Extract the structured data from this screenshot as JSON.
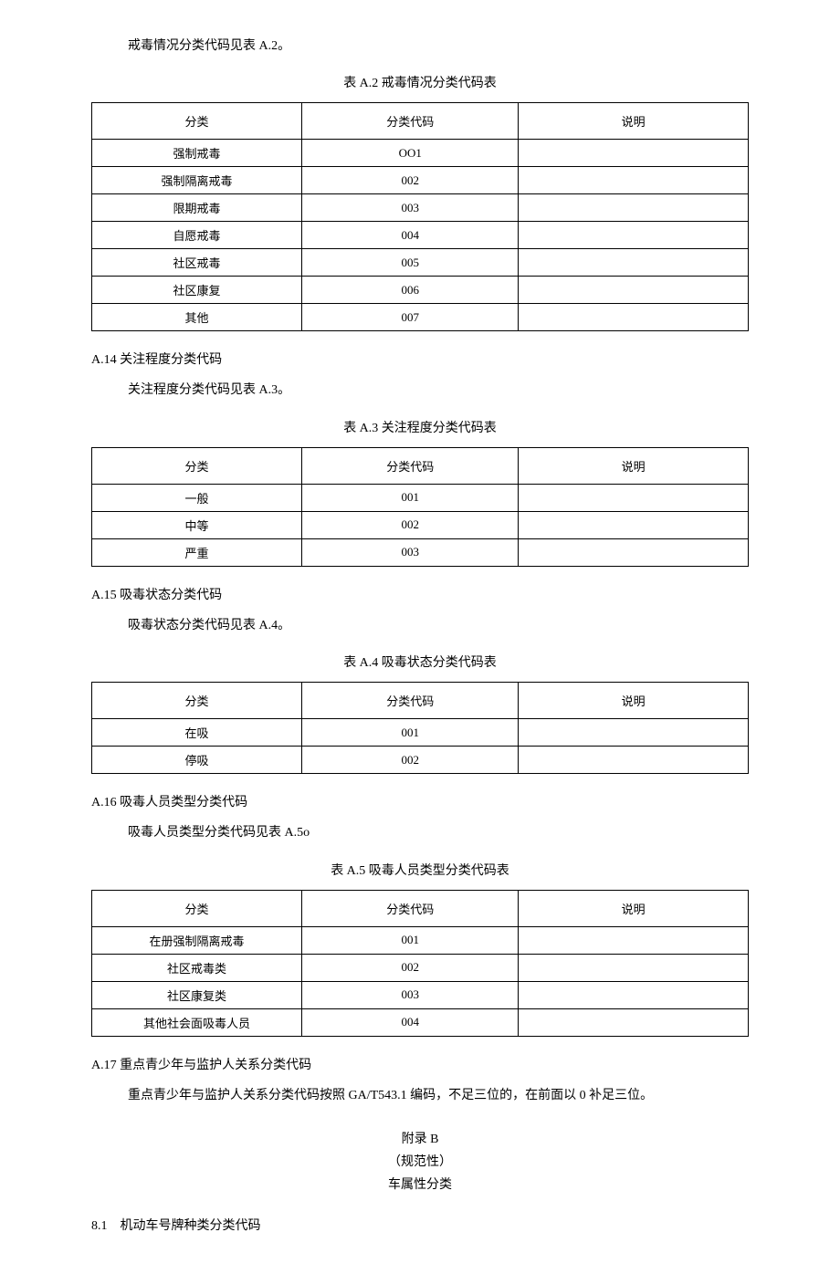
{
  "intro_a2": "戒毒情况分类代码见表 A.2。",
  "title_a2": "表 A.2 戒毒情况分类代码表",
  "headers": {
    "category": "分类",
    "code": "分类代码",
    "desc": "说明"
  },
  "table_a2": [
    {
      "cat": "强制戒毒",
      "code": "OO1",
      "desc": ""
    },
    {
      "cat": "强制隔离戒毒",
      "code": "002",
      "desc": ""
    },
    {
      "cat": "限期戒毒",
      "code": "003",
      "desc": ""
    },
    {
      "cat": "自愿戒毒",
      "code": "004",
      "desc": ""
    },
    {
      "cat": "社区戒毒",
      "code": "005",
      "desc": ""
    },
    {
      "cat": "社区康复",
      "code": "006",
      "desc": ""
    },
    {
      "cat": "其他",
      "code": "007",
      "desc": ""
    }
  ],
  "heading_a14": "A.14 关注程度分类代码",
  "intro_a3": "关注程度分类代码见表 A.3。",
  "title_a3": "表 A.3 关注程度分类代码表",
  "table_a3": [
    {
      "cat": "一般",
      "code": "001",
      "desc": ""
    },
    {
      "cat": "中等",
      "code": "002",
      "desc": ""
    },
    {
      "cat": "严重",
      "code": "003",
      "desc": ""
    }
  ],
  "heading_a15": "A.15 吸毒状态分类代码",
  "intro_a4": "吸毒状态分类代码见表 A.4。",
  "title_a4": "表 A.4 吸毒状态分类代码表",
  "table_a4": [
    {
      "cat": "在吸",
      "code": "001",
      "desc": ""
    },
    {
      "cat": "停吸",
      "code": "002",
      "desc": ""
    }
  ],
  "heading_a16": "A.16 吸毒人员类型分类代码",
  "intro_a5": "吸毒人员类型分类代码见表 A.5o",
  "title_a5": "表 A.5 吸毒人员类型分类代码表",
  "table_a5": [
    {
      "cat": "在册强制隔离戒毒",
      "code": "001",
      "desc": ""
    },
    {
      "cat": "社区戒毒类",
      "code": "002",
      "desc": ""
    },
    {
      "cat": "社区康复类",
      "code": "003",
      "desc": ""
    },
    {
      "cat": "其他社会面吸毒人员",
      "code": "004",
      "desc": ""
    }
  ],
  "heading_a17": "A.17 重点青少年与监护人关系分类代码",
  "para_a17": "重点青少年与监护人关系分类代码按照 GA/T543.1 编码，不足三位的，在前面以 0 补足三位。",
  "appendix_b": {
    "line1": "附录 B",
    "line2": "（规范性）",
    "line3": "车属性分类"
  },
  "heading_b1": "8.1　机动车号牌种类分类代码"
}
